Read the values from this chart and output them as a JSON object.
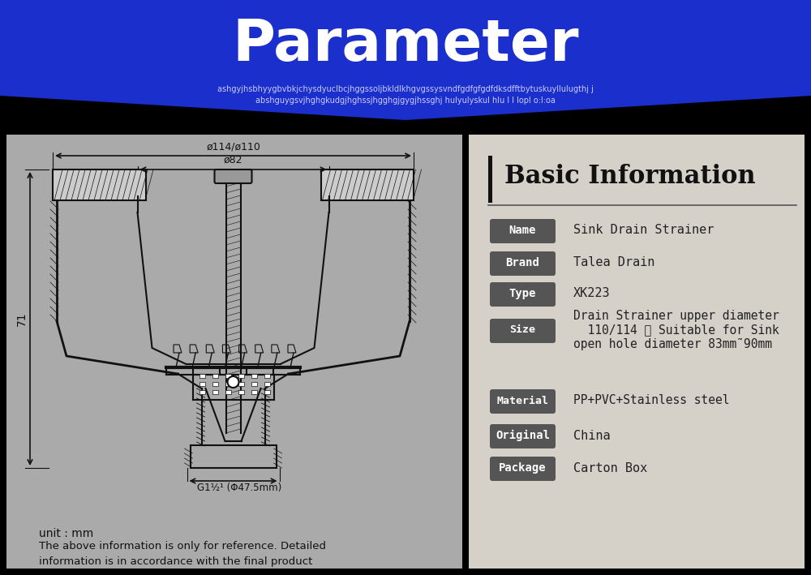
{
  "title": "Parameter",
  "title_color": "#ffffff",
  "title_fontsize": 52,
  "header_bg_color": "#1a2fcc",
  "header_subtitle_line1": "ashgyjhsbhyygbvbkjchysdyuclbcjhggssoljbkldlkhgvgssysvndfgdfgfgdfdksdfftbytuskuyllulugthj j",
  "header_subtitle_line2": "abshguygsvjhghgkudgjhghssjhgghgjgygjhssghj hulyulyskul hlu l l lopl o:l:oa",
  "subtitle_color": "#ccccff",
  "subtitle_fontsize": 7,
  "section_title": "Basic Information",
  "labels": [
    "Name",
    "Brand",
    "Type",
    "Size",
    "Material",
    "Original",
    "Package"
  ],
  "values": [
    "Sink Drain Strainer",
    "Talea Drain",
    "XK223",
    "Drain Strainer upper diameter\n  110/114 ， Suitable for Sink\nopen hole diameter 83mm˜90mm",
    "PP+PVC+Stainless steel",
    "China",
    "Carton Box"
  ],
  "label_bg_color": "#555555",
  "label_text_color": "#ffffff",
  "value_text_color": "#222222",
  "diagram_dim_text": [
    "ø114/ø110",
    "ø82",
    "71",
    "G1½¹ (Φ47.5mm)"
  ],
  "unit_text": "unit : mm",
  "disclaimer_text": "The above information is only for reference. Detailed\ninformation is in accordance with the final product",
  "left_panel_bg": "#aaaaaa",
  "right_panel_bg": "#d5d0c8"
}
